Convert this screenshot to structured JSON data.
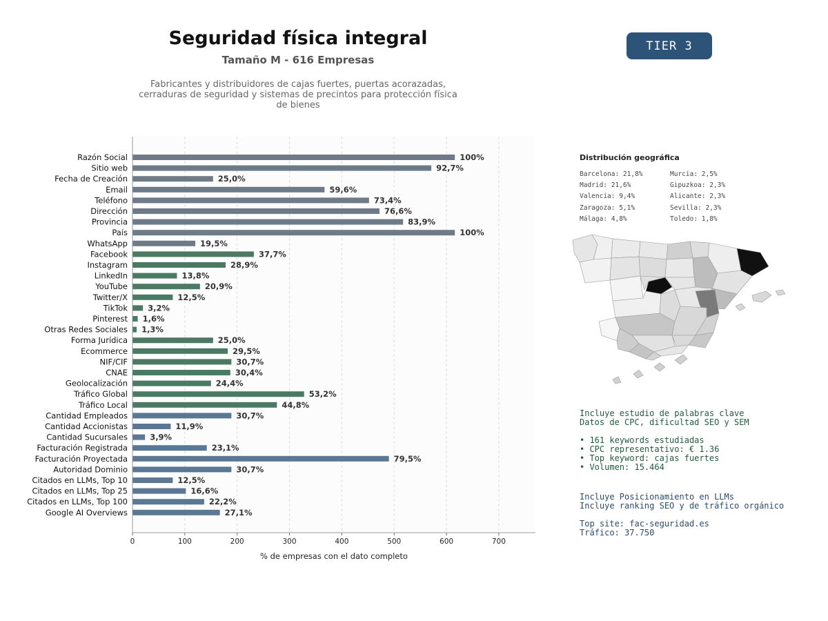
{
  "header": {
    "title": "Seguridad física integral",
    "subtitle": "Tamaño M - 616 Empresas",
    "description": "Fabricantes y distribuidores de cajas fuertes, puertas acorazadas, cerraduras de seguridad y sistemas de precintos para protección física de bienes",
    "tier": "TIER 3"
  },
  "chart_data": {
    "type": "bar",
    "orientation": "horizontal",
    "xlabel": "% de empresas con el dato completo",
    "xlim": [
      0,
      770
    ],
    "xticks": [
      0,
      100,
      200,
      300,
      400,
      500,
      600,
      700
    ],
    "grid": "vertical dashed",
    "categories": [
      "Razón Social",
      "Sitio web",
      "Fecha de Creación",
      "Email",
      "Teléfono",
      "Dirección",
      "Provincia",
      "País",
      "WhatsApp",
      "Facebook",
      "Instagram",
      "LinkedIn",
      "YouTube",
      "Twitter/X",
      "TikTok",
      "Pinterest",
      "Otras Redes Sociales",
      "Forma Jurídica",
      "Ecommerce",
      "NIF/CIF",
      "CNAE",
      "Geolocalización",
      "Tráfico Global",
      "Tráfico Local",
      "Cantidad Empleados",
      "Cantidad Accionistas",
      "Cantidad Sucursales",
      "Facturación Registrada",
      "Facturación Proyectada",
      "Autoridad Dominio",
      "Citados en LLMs, Top 10",
      "Citados en LLMs, Top 25",
      "Citados en LLMs, Top 100",
      "Google AI Overviews"
    ],
    "values": [
      616,
      571,
      154,
      367,
      452,
      472,
      517,
      616,
      120,
      232,
      178,
      85,
      129,
      77,
      20,
      10,
      8,
      154,
      182,
      189,
      187,
      150,
      328,
      276,
      189,
      73,
      24,
      142,
      490,
      189,
      77,
      102,
      137,
      167
    ],
    "labels": [
      "100%",
      "92,7%",
      "25,0%",
      "59,6%",
      "73,4%",
      "76,6%",
      "83,9%",
      "100%",
      "19,5%",
      "37,7%",
      "28,9%",
      "13,8%",
      "20,9%",
      "12,5%",
      "3,2%",
      "1,6%",
      "1,3%",
      "25,0%",
      "29,5%",
      "30,7%",
      "30,4%",
      "24,4%",
      "53,2%",
      "44,8%",
      "30,7%",
      "11,9%",
      "3,9%",
      "23,1%",
      "79,5%",
      "30,7%",
      "12,5%",
      "16,6%",
      "22,2%",
      "27,1%"
    ],
    "groups": [
      "gray",
      "gray",
      "gray",
      "gray",
      "gray",
      "gray",
      "gray",
      "gray",
      "gray",
      "green",
      "green",
      "green",
      "green",
      "green",
      "green",
      "green",
      "green",
      "green",
      "green",
      "green",
      "green",
      "green",
      "green",
      "green",
      "blue",
      "blue",
      "blue",
      "blue",
      "blue",
      "blue",
      "blue",
      "blue",
      "blue",
      "blue"
    ],
    "colors": {
      "gray": "#6e7a88",
      "green": "#4a7a64",
      "blue": "#5a7794"
    }
  },
  "geo": {
    "title": "Distribución geográfica",
    "col1": [
      "Barcelona: 21,8%",
      "Madrid: 21,6%",
      "Valencia: 9,4%",
      "Zaragoza: 5,1%",
      "Málaga: 4,8%"
    ],
    "col2": [
      "Murcia: 2,5%",
      "Gipuzkoa: 2,3%",
      "Alicante: 2,3%",
      "Sevilla: 2,3%",
      "Toledo: 1,8%"
    ]
  },
  "seo": {
    "line1": "Incluye estudio de palabras clave",
    "line2": "Datos de CPC, dificultad SEO y SEM",
    "bullets": [
      "• 161 keywords estudiadas",
      "• CPC representativo: € 1.36",
      "• Top keyword: cajas fuertes",
      "• Volumen: 15.464"
    ]
  },
  "llm": {
    "line1": "Incluye Posicionamiento en LLMs",
    "line2": "Incluye ranking SEO y de tráfico orgánico",
    "top_site": "Top site: fac-seguridad.es",
    "traffic": "Tráfico: 37.750"
  }
}
